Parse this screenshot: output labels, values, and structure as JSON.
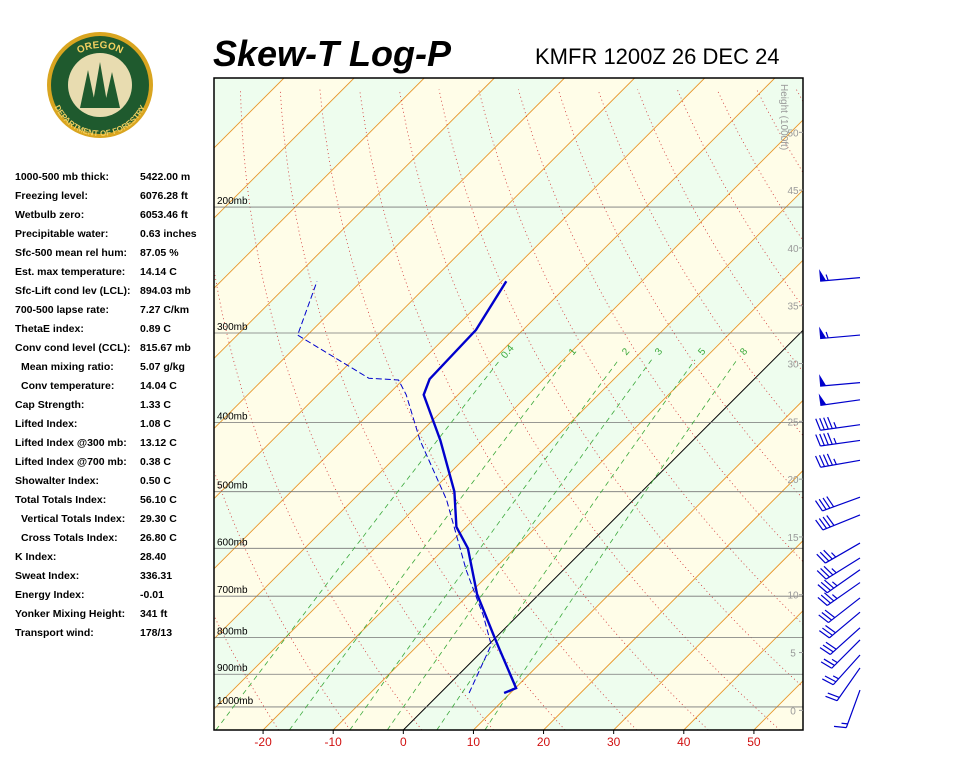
{
  "logo": {
    "top": "OREGON",
    "bottom": "DEPARTMENT OF FORESTRY"
  },
  "header": {
    "title": "Skew-T Log-P",
    "station": "KMFR 1200Z 26 DEC 24"
  },
  "indices": [
    {
      "label": "1000-500 mb thick:",
      "value": "5422.00 m"
    },
    {
      "label": "Freezing level:",
      "value": "6076.28 ft"
    },
    {
      "label": "Wetbulb zero:",
      "value": "6053.46 ft"
    },
    {
      "label": "Precipitable water:",
      "value": "0.63 inches"
    },
    {
      "label": "Sfc-500 mean rel hum:",
      "value": "87.05 %"
    },
    {
      "label": "Est. max temperature:",
      "value": "14.14 C"
    },
    {
      "label": "Sfc-Lift cond lev (LCL):",
      "value": "894.03 mb"
    },
    {
      "label": "700-500 lapse rate:",
      "value": "7.27 C/km"
    },
    {
      "label": "ThetaE index:",
      "value": "0.89 C"
    },
    {
      "label": "Conv cond level (CCL):",
      "value": "815.67 mb"
    },
    {
      "label": "Mean mixing ratio:",
      "value": "5.07 g/kg"
    },
    {
      "label": "Conv temperature:",
      "value": "14.04 C"
    },
    {
      "label": "Cap Strength:",
      "value": "1.33 C"
    },
    {
      "label": "Lifted Index:",
      "value": "1.08 C"
    },
    {
      "label": "Lifted Index @300 mb:",
      "value": "13.12 C"
    },
    {
      "label": "Lifted Index @700 mb:",
      "value": "0.38 C"
    },
    {
      "label": "Showalter Index:",
      "value": "0.50 C"
    },
    {
      "label": "Total Totals Index:",
      "value": "56.10 C"
    },
    {
      "label": "Vertical Totals Index:",
      "value": "29.30 C"
    },
    {
      "label": "Cross Totals Index:",
      "value": "26.80 C"
    },
    {
      "label": "K Index:",
      "value": "28.40"
    },
    {
      "label": "Sweat Index:",
      "value": "336.31"
    },
    {
      "label": "Energy Index:",
      "value": "-0.01"
    },
    {
      "label": "Yonker Mixing Height:",
      "value": "341 ft"
    },
    {
      "label": "Transport wind:",
      "value": "178/13"
    }
  ],
  "chart_data": {
    "type": "skew-t",
    "xlim": [
      -27,
      57
    ],
    "xticks": [
      -20,
      -10,
      0,
      10,
      20,
      30,
      40,
      50
    ],
    "ylim": [
      1077,
      132
    ],
    "yticks": [
      {
        "value": 200,
        "label": "200mb"
      },
      {
        "value": 300,
        "label": "300mb"
      },
      {
        "value": 400,
        "label": "400mb"
      },
      {
        "value": 500,
        "label": "500mb"
      },
      {
        "value": 600,
        "label": "600mb"
      },
      {
        "value": 700,
        "label": "700mb"
      },
      {
        "value": 800,
        "label": "800mb"
      },
      {
        "value": 900,
        "label": "900mb"
      },
      {
        "value": 1000,
        "label": "1000mb"
      }
    ],
    "height_label": "Height (1000ft)",
    "height_lim": [
      -1.7,
      54.7
    ],
    "height_ticks": [
      0,
      5,
      10,
      15,
      20,
      25,
      30,
      35,
      40,
      45,
      50
    ],
    "mixing_ratios": [
      0.4,
      1,
      2,
      3,
      5,
      8
    ],
    "series": [
      {
        "color": "#0000cc",
        "pressure": [
          956,
          941,
          833,
          793,
          695,
          600,
          560,
          500,
          424,
          366,
          348,
          297,
          254
        ],
        "values": [
          9.1,
          10.1,
          2.4,
          -0.7,
          -8.9,
          -16.7,
          -21.4,
          -26.7,
          -36,
          -44.9,
          -46.3,
          -46.7,
          -49.3
        ]
      },
      {
        "color": "#0000cc",
        "pressure": [
          956,
          819,
          744,
          698,
          643,
          513,
          424,
          366,
          349,
          347,
          302,
          254
        ],
        "values": [
          4.1,
          0.4,
          -5,
          -8.9,
          -13.9,
          -26.7,
          -38.9,
          -47.4,
          -50.6,
          -55.1,
          -71.4,
          -76.3
        ]
      }
    ],
    "winds": {
      "pressure": [
        251,
        302,
        352,
        372,
        403,
        424,
        452,
        509,
        539,
        590,
        619,
        643,
        670,
        704,
        737,
        775,
        806,
        846,
        882,
        947
      ],
      "direction": [
        265,
        265,
        265,
        262,
        262,
        262,
        260,
        250,
        248,
        240,
        238,
        235,
        235,
        232,
        230,
        228,
        225,
        222,
        215,
        200
      ],
      "speed": [
        55,
        55,
        50,
        50,
        45,
        45,
        45,
        40,
        40,
        35,
        35,
        35,
        35,
        30,
        30,
        30,
        25,
        25,
        20,
        15
      ]
    }
  }
}
